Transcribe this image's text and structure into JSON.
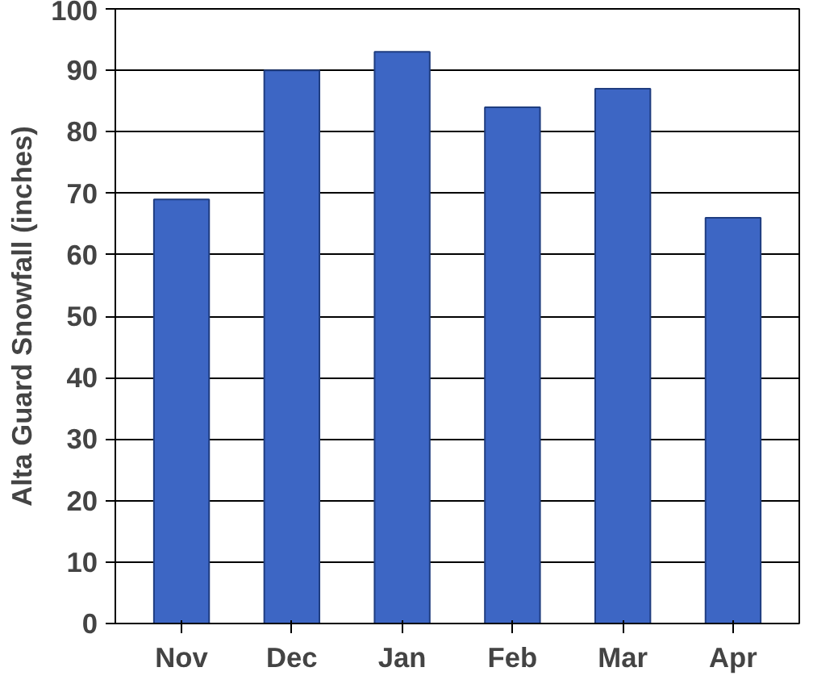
{
  "chart_data": {
    "type": "bar",
    "ylabel": "Alta Guard Snowfall (inches)",
    "categories": [
      "Nov",
      "Dec",
      "Jan",
      "Feb",
      "Mar",
      "Apr"
    ],
    "values": [
      69,
      90,
      93,
      84,
      87,
      66
    ],
    "color": "#3d66c4",
    "ylim": [
      0,
      100
    ],
    "yticks": [
      0,
      10,
      20,
      30,
      40,
      50,
      60,
      70,
      80,
      90,
      100
    ],
    "grid": "y"
  }
}
